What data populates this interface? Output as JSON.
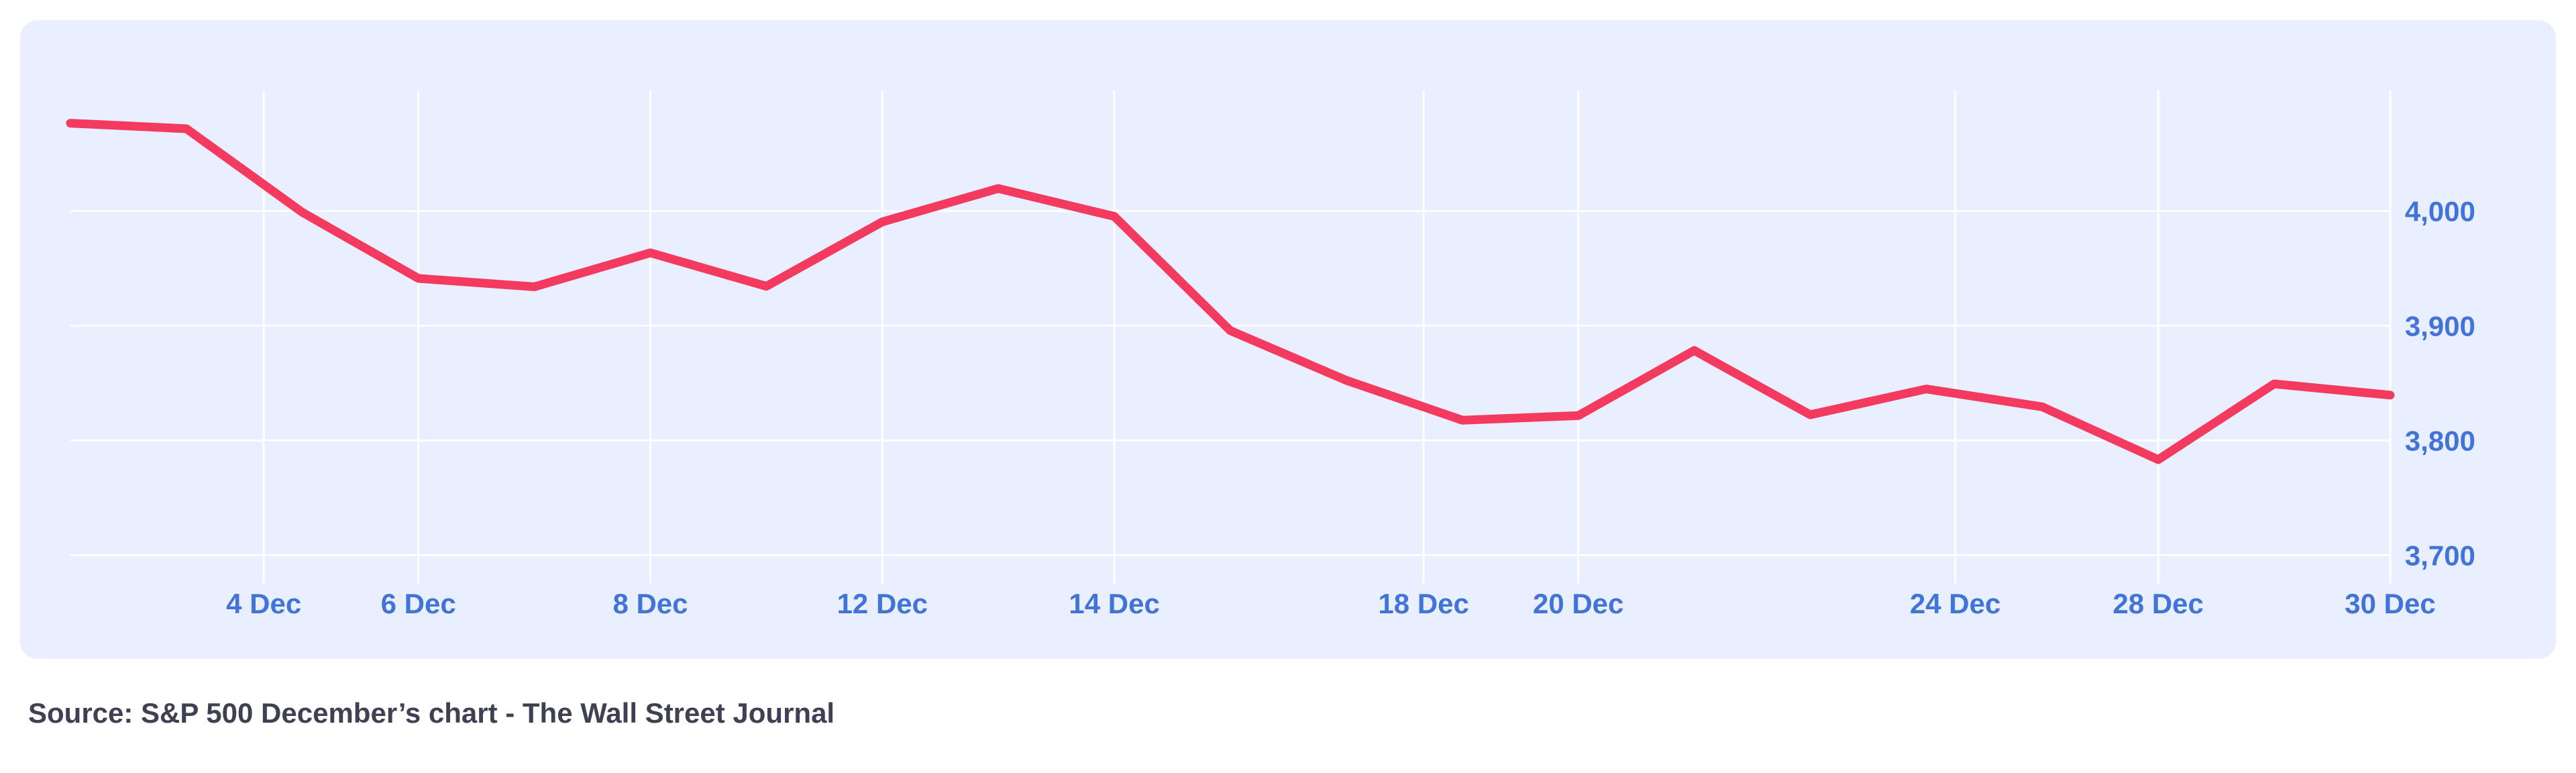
{
  "chart_data": {
    "type": "line",
    "title": "S&P 500 December’s chart",
    "xlabel": "",
    "ylabel": "",
    "series_name": "S&P 500",
    "x_days": [
      1,
      2,
      5,
      6,
      7,
      8,
      9,
      12,
      13,
      14,
      15,
      16,
      19,
      20,
      21,
      22,
      23,
      27,
      28,
      29,
      30
    ],
    "values": [
      4076.57,
      4071.7,
      3998.84,
      3941.26,
      3933.92,
      3963.51,
      3934.38,
      3990.56,
      4019.65,
      3995.32,
      3895.75,
      3852.36,
      3817.66,
      3821.62,
      3878.44,
      3822.39,
      3844.82,
      3829.25,
      3783.22,
      3849.28,
      3839.5
    ],
    "x_ticks": [
      {
        "day": 4,
        "label": "4 Dec"
      },
      {
        "day": 6,
        "label": "6 Dec"
      },
      {
        "day": 8,
        "label": "8 Dec"
      },
      {
        "day": 12,
        "label": "12 Dec"
      },
      {
        "day": 14,
        "label": "14 Dec"
      },
      {
        "day": 18,
        "label": "18 Dec"
      },
      {
        "day": 20,
        "label": "20 Dec"
      },
      {
        "day": 24,
        "label": "24 Dec"
      },
      {
        "day": 28,
        "label": "28 Dec"
      },
      {
        "day": 30,
        "label": "30 Dec"
      }
    ],
    "y_ticks": [
      4000,
      3900,
      3800,
      3700
    ],
    "y_tick_labels": [
      "4,000",
      "3,900",
      "3,800",
      "3,700"
    ],
    "ylim": [
      3675,
      4105
    ],
    "grid": true,
    "legend": "none",
    "colors": {
      "line": "#f43a5f",
      "grid": "#ffffff",
      "plot_bg": "#e9effe",
      "axis_labels": "#4173d9"
    }
  },
  "source": {
    "prefix": "Source: S&P 500 December’s chart - ",
    "publisher": "The Wall Street Journal"
  }
}
